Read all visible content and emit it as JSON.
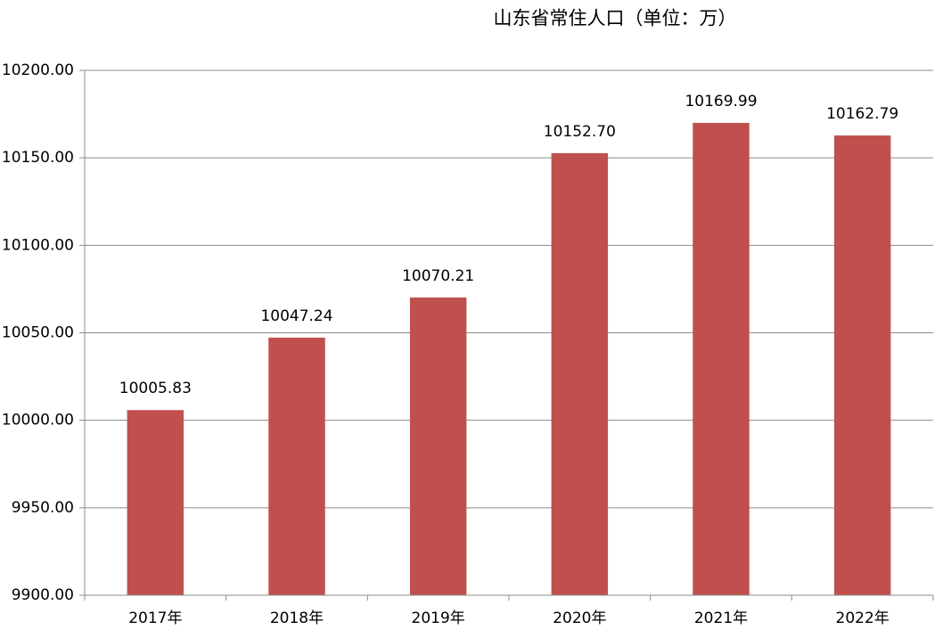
{
  "chart_data": {
    "type": "bar",
    "title": "山东省常住人口（单位：万）",
    "categories": [
      "2017年",
      "2018年",
      "2019年",
      "2020年",
      "2021年",
      "2022年"
    ],
    "values": [
      10005.83,
      10047.24,
      10070.21,
      10152.7,
      10169.99,
      10162.79
    ],
    "value_labels": [
      "10005.83",
      "10047.24",
      "10070.21",
      "10152.70",
      "10169.99",
      "10162.79"
    ],
    "color": "#c0504d",
    "ylim": [
      9900,
      10200
    ],
    "yticks": [
      {
        "value": 9900,
        "label": "9900.00"
      },
      {
        "value": 9950,
        "label": "9950.00"
      },
      {
        "value": 10000,
        "label": "10000.00"
      },
      {
        "value": 10050,
        "label": "10050.00"
      },
      {
        "value": 10100,
        "label": "10100.00"
      },
      {
        "value": 10150,
        "label": "10150.00"
      },
      {
        "value": 10200,
        "label": "10200.00"
      }
    ],
    "grid": true
  }
}
